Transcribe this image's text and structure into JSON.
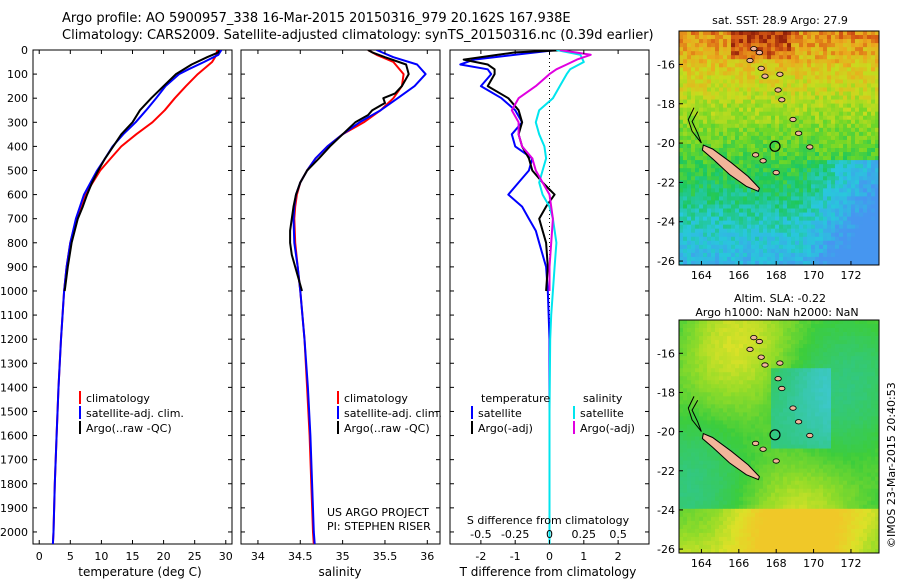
{
  "header": {
    "line1": "Argo profile: AO 5900957_338 16-Mar-2015 20150316_979 20.162S 167.938E",
    "line2": "Climatology: CARS2009. Satellite-adjusted climatology: synTS_20150316.nc (0.39d earlier)"
  },
  "colors": {
    "climatology": "#ff0000",
    "satellite": "#0000ff",
    "argo": "#000000",
    "salinity_sat": "#00e5ee",
    "salinity_argo": "#e000e0"
  },
  "depth_ticks": [
    "0",
    "100",
    "200",
    "300",
    "400",
    "500",
    "600",
    "700",
    "800",
    "900",
    "1000",
    "1100",
    "1200",
    "1300",
    "1400",
    "1500",
    "1600",
    "1700",
    "1800",
    "1900",
    "2000"
  ],
  "chart_data": [
    {
      "type": "line",
      "xlabel": "temperature (deg C)",
      "xticks": [
        "0",
        "5",
        "10",
        "15",
        "20",
        "25",
        "30"
      ],
      "xlim": [
        -1,
        31
      ],
      "ylim": [
        2050,
        0
      ],
      "legend": [
        "climatology",
        "satellite-adj. clim.",
        "Argo(..raw -QC)"
      ],
      "series": [
        {
          "name": "climatology",
          "color": "#ff0000",
          "depth": [
            0,
            20,
            50,
            100,
            150,
            200,
            250,
            300,
            350,
            400,
            450,
            500,
            600,
            700,
            800,
            900,
            1000,
            1200,
            1400,
            1600,
            1800,
            2000,
            2050
          ],
          "values": [
            28.6,
            28.5,
            27.8,
            25.5,
            23.6,
            21.8,
            20.2,
            18.2,
            15.6,
            13.2,
            11.5,
            9.8,
            7.4,
            6.0,
            5.0,
            4.4,
            4.0,
            3.5,
            3.1,
            2.8,
            2.5,
            2.3,
            2.2
          ]
        },
        {
          "name": "satellite-adj. clim.",
          "color": "#0000ff",
          "depth": [
            0,
            20,
            50,
            80,
            100,
            150,
            200,
            250,
            300,
            350,
            400,
            450,
            500,
            600,
            700,
            800,
            900,
            1000,
            1200,
            1400,
            1600,
            1800,
            2000,
            2050
          ],
          "values": [
            29.3,
            28.8,
            26.5,
            24.0,
            22.5,
            20.3,
            18.8,
            17.2,
            15.5,
            13.5,
            11.8,
            10.6,
            9.3,
            7.2,
            5.9,
            5.0,
            4.4,
            4.0,
            3.5,
            3.1,
            2.8,
            2.5,
            2.3,
            2.2
          ]
        },
        {
          "name": "Argo(..raw -QC)",
          "color": "#000000",
          "depth": [
            0,
            10,
            30,
            60,
            100,
            150,
            200,
            250,
            300,
            350,
            400,
            450,
            500,
            550,
            600,
            650,
            700,
            750,
            800,
            900,
            1000
          ],
          "values": [
            28.9,
            28.8,
            27.0,
            24.5,
            22.0,
            20.0,
            18.0,
            16.2,
            15.0,
            13.2,
            11.9,
            10.6,
            9.5,
            8.5,
            7.7,
            7.0,
            6.2,
            5.7,
            5.2,
            4.6,
            4.1
          ]
        }
      ]
    },
    {
      "type": "line",
      "xlabel": "salinity",
      "xticks": [
        "34",
        "34.5",
        "35",
        "35.5",
        "36"
      ],
      "xlim": [
        33.8,
        36.15
      ],
      "ylim": [
        2050,
        0
      ],
      "legend": [
        "climatology",
        "satellite-adj. clim.",
        "Argo(..raw -QC)"
      ],
      "annotation": [
        "US ARGO PROJECT",
        "PI: STEPHEN RISER"
      ],
      "series": [
        {
          "name": "climatology",
          "color": "#ff0000",
          "depth": [
            0,
            20,
            50,
            100,
            150,
            200,
            250,
            300,
            350,
            400,
            450,
            500,
            550,
            600,
            650,
            700,
            800,
            900,
            1000,
            1200,
            1400,
            1600,
            1800,
            2000,
            2050
          ],
          "values": [
            35.3,
            35.4,
            35.6,
            35.72,
            35.7,
            35.6,
            35.45,
            35.25,
            35.0,
            34.82,
            34.68,
            34.58,
            34.5,
            34.46,
            34.44,
            34.43,
            34.44,
            34.47,
            34.5,
            34.55,
            34.58,
            34.61,
            34.63,
            34.65,
            34.66
          ]
        },
        {
          "name": "satellite-adj. clim.",
          "color": "#0000ff",
          "depth": [
            0,
            30,
            60,
            100,
            150,
            200,
            250,
            300,
            350,
            400,
            450,
            500,
            550,
            600,
            650,
            700,
            800,
            900,
            1000,
            1200,
            1400,
            1600,
            1800,
            2000,
            2050
          ],
          "values": [
            35.4,
            35.6,
            35.88,
            35.98,
            35.85,
            35.65,
            35.45,
            35.2,
            35.0,
            34.82,
            34.68,
            34.58,
            34.5,
            34.45,
            34.43,
            34.42,
            34.43,
            34.47,
            34.5,
            34.55,
            34.59,
            34.62,
            34.64,
            34.66,
            34.67
          ]
        },
        {
          "name": "Argo(..raw -QC)",
          "color": "#000000",
          "depth": [
            0,
            10,
            30,
            60,
            100,
            150,
            180,
            200,
            220,
            250,
            270,
            300,
            350,
            400,
            450,
            500,
            550,
            600,
            650,
            700,
            750,
            800,
            850,
            900,
            950,
            1000
          ],
          "values": [
            35.3,
            35.35,
            35.5,
            35.75,
            35.78,
            35.7,
            35.62,
            35.48,
            35.5,
            35.35,
            35.3,
            35.15,
            35.0,
            34.85,
            34.72,
            34.58,
            34.5,
            34.45,
            34.42,
            34.4,
            34.38,
            34.38,
            34.4,
            34.44,
            34.48,
            34.52
          ]
        }
      ]
    },
    {
      "type": "line",
      "xlabel_top": "S difference from climatology",
      "xlabel": "T difference from climatology",
      "xticks": [
        "-2",
        "-1",
        "0",
        "1",
        "2"
      ],
      "xticks_top": [
        "-0.5",
        "-0.25",
        "0",
        "0.25",
        "0.5"
      ],
      "xlim": [
        -2.9,
        2.9
      ],
      "ylim": [
        2050,
        0
      ],
      "legend_left_title": "temperature",
      "legend_right_title": "salinity",
      "legend_left": [
        "satellite",
        "Argo(-adj)"
      ],
      "legend_right": [
        "satellite",
        "Argo(-adj)"
      ],
      "series": [
        {
          "name": "temperature satellite",
          "color": "#0000ff",
          "depth": [
            0,
            20,
            40,
            60,
            80,
            100,
            150,
            200,
            250,
            300,
            350,
            400,
            450,
            500,
            550,
            600,
            650,
            700,
            750,
            800,
            900,
            1000,
            1200,
            1500,
            2050
          ],
          "values": [
            0.2,
            -1.0,
            -2.2,
            -2.6,
            -1.8,
            -1.7,
            -2.0,
            -1.4,
            -1.0,
            -0.8,
            -1.1,
            -1.0,
            -0.5,
            -0.6,
            -0.9,
            -1.2,
            -0.8,
            -0.6,
            -0.4,
            -0.3,
            -0.1,
            -0.05,
            0,
            0,
            0
          ]
        },
        {
          "name": "temperature Argo(-adj)",
          "color": "#000000",
          "depth": [
            0,
            10,
            20,
            40,
            60,
            80,
            100,
            150,
            200,
            250,
            300,
            350,
            400,
            450,
            500,
            550,
            600,
            650,
            700,
            750,
            800,
            900,
            1000
          ],
          "values": [
            0.5,
            -1.0,
            -1.5,
            -2.5,
            -1.8,
            -1.6,
            -1.6,
            -1.8,
            -1.2,
            -0.9,
            -0.8,
            -0.9,
            -0.8,
            -0.6,
            -0.5,
            -0.2,
            0.15,
            -0.1,
            -0.3,
            -0.2,
            -0.1,
            -0.05,
            -0.1
          ]
        },
        {
          "name": "salinity satellite",
          "color": "#00e5ee",
          "depth": [
            0,
            20,
            50,
            80,
            100,
            150,
            200,
            250,
            300,
            350,
            400,
            450,
            500,
            550,
            600,
            650,
            700,
            800,
            900,
            1000,
            1100,
            1200,
            1500,
            2050
          ],
          "values": [
            0.2,
            0.9,
            1.0,
            0.6,
            0.5,
            0.3,
            0.1,
            -0.3,
            -0.4,
            -0.3,
            -0.15,
            -0.1,
            -0.2,
            -0.3,
            -0.2,
            0.0,
            0.1,
            0.2,
            0.15,
            0.1,
            0.05,
            0.02,
            0.0,
            0.0
          ]
        },
        {
          "name": "salinity Argo(-adj)",
          "color": "#e000e0",
          "depth": [
            0,
            20,
            40,
            60,
            80,
            100,
            150,
            200,
            250,
            300,
            350,
            400,
            450,
            500,
            550,
            600,
            700,
            800,
            900,
            1000
          ],
          "values": [
            0.3,
            1.2,
            0.8,
            0.5,
            0.2,
            0.0,
            -0.4,
            -0.9,
            -1.1,
            -0.9,
            -0.9,
            -0.8,
            -0.5,
            -0.4,
            -0.2,
            0.0,
            0.1,
            0.05,
            0.0,
            0.0
          ]
        }
      ]
    },
    {
      "type": "heatmap",
      "title": "sat. SST: 28.9 Argo: 27.9",
      "xticks": [
        "164",
        "166",
        "168",
        "170",
        "172"
      ],
      "yticks": [
        "-16",
        "-18",
        "-20",
        "-22",
        "-24",
        "-26"
      ],
      "xlim": [
        162.8,
        173.5
      ],
      "ylim": [
        -26.2,
        -14.3
      ],
      "argo_position": [
        167.938,
        -20.162
      ]
    },
    {
      "type": "heatmap",
      "title": "Altim. SLA: -0.22",
      "subtitle": "Argo h1000: NaN h2000: NaN",
      "xticks": [
        "164",
        "166",
        "168",
        "170",
        "172"
      ],
      "yticks": [
        "-16",
        "-18",
        "-20",
        "-22",
        "-24",
        "-26"
      ],
      "xlim": [
        162.8,
        173.5
      ],
      "ylim": [
        -26.2,
        -14.3
      ],
      "argo_position": [
        167.938,
        -20.162
      ]
    }
  ],
  "credit": "©IMOS 23-Mar-2015 20:40:53"
}
